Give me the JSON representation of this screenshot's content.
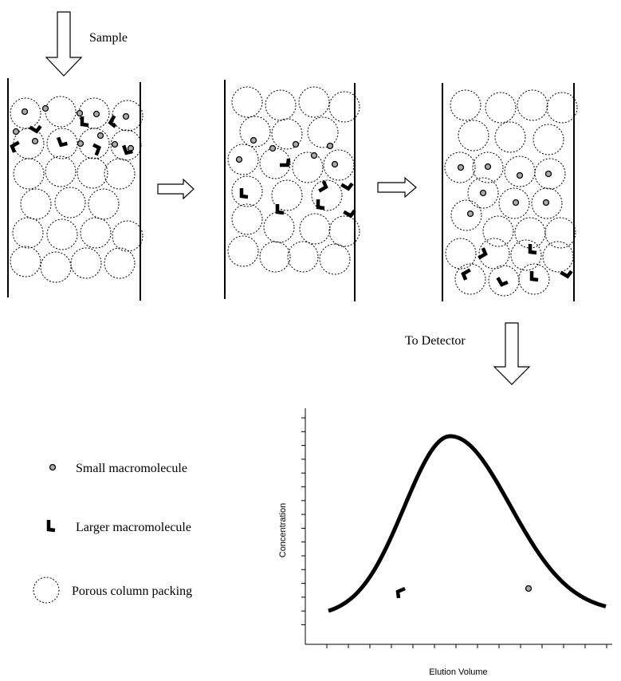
{
  "sample_label": "Sample",
  "detector_label": "To Detector",
  "legend": [
    {
      "label": "Small macromolecule"
    },
    {
      "label": "Larger macromolecule"
    },
    {
      "label": "Porous column packing"
    }
  ],
  "plot": {
    "y_label": "Concentration",
    "x_label": "Elution Volume"
  }
}
